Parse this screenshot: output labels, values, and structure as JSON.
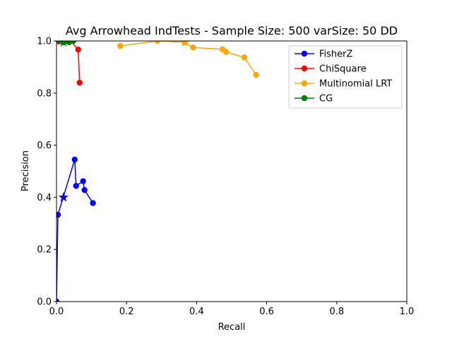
{
  "chart_data": {
    "type": "line",
    "title": "Avg Arrowhead IndTests - Sample Size: 500 varSize: 50 DD",
    "xlabel": "Recall",
    "ylabel": "Precision",
    "xlim": [
      0.0,
      1.0
    ],
    "ylim": [
      0.0,
      1.0
    ],
    "xticks": [
      "0.0",
      "0.2",
      "0.4",
      "0.6",
      "0.8",
      "1.0"
    ],
    "yticks": [
      "0.0",
      "0.2",
      "0.4",
      "0.6",
      "0.8",
      "1.0"
    ],
    "grid": false,
    "legend_position": "top-right",
    "series": [
      {
        "name": "FisherZ",
        "color": "#0000ff",
        "points": [
          [
            0.0,
            0.0
          ],
          [
            0.004,
            0.333
          ],
          [
            0.052,
            0.545
          ],
          [
            0.056,
            0.444
          ],
          [
            0.076,
            0.462
          ],
          [
            0.08,
            0.428
          ],
          [
            0.104,
            0.378
          ]
        ],
        "highlight": [
          0.02,
          0.4
        ]
      },
      {
        "name": "ChiSquare",
        "color": "#ff0000",
        "points": [
          [
            0.0,
            1.0
          ],
          [
            0.008,
            1.0
          ],
          [
            0.016,
            1.0
          ],
          [
            0.04,
            1.0
          ],
          [
            0.062,
            0.967
          ],
          [
            0.066,
            0.84
          ]
        ],
        "highlight": [
          0.0,
          1.0
        ]
      },
      {
        "name": "Multinomial LRT",
        "color": "#ffa500",
        "points": [
          [
            0.182,
            0.981
          ],
          [
            0.288,
            1.0
          ],
          [
            0.366,
            0.995
          ],
          [
            0.39,
            0.975
          ],
          [
            0.474,
            0.968
          ],
          [
            0.484,
            0.958
          ],
          [
            0.536,
            0.937
          ],
          [
            0.57,
            0.87
          ]
        ],
        "highlight": [
          0.366,
          0.995
        ]
      },
      {
        "name": "CG",
        "color": "#008000",
        "points": [
          [
            0.01,
            1.0
          ],
          [
            0.02,
            0.995
          ],
          [
            0.03,
            1.0
          ],
          [
            0.036,
            0.995
          ],
          [
            0.048,
            1.0
          ]
        ],
        "highlight": [
          0.02,
          0.995
        ]
      }
    ]
  }
}
